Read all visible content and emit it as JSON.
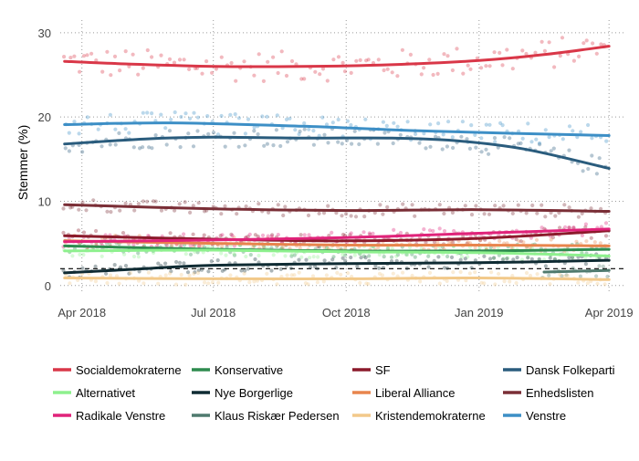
{
  "chart_data": {
    "type": "line",
    "title": "",
    "xlabel": "",
    "ylabel": "Stemmer (%)",
    "ylim": [
      -1,
      31.5
    ],
    "xlim": [
      "2018-03-17",
      "2019-04-11"
    ],
    "x_ticks": [
      {
        "date": "2018-04-01",
        "label": "Apr 2018"
      },
      {
        "date": "2018-07-01",
        "label": "Jul 2018"
      },
      {
        "date": "2018-10-01",
        "label": "Oct 2018"
      },
      {
        "date": "2019-01-01",
        "label": "Jan 2019"
      },
      {
        "date": "2019-04-01",
        "label": "Apr 2019"
      }
    ],
    "y_ticks": [
      0,
      10,
      20,
      30
    ],
    "grid": "dotted",
    "threshold_line": 2,
    "legend_position": "bottom",
    "series": [
      {
        "name": "Socialdemokraterne",
        "color": "#d93748",
        "x": [
          "2018-03-20",
          "2018-05-01",
          "2018-07-01",
          "2018-09-01",
          "2018-11-01",
          "2019-01-01",
          "2019-02-15",
          "2019-04-01"
        ],
        "values": [
          26.6,
          26.3,
          26.0,
          26.0,
          26.2,
          26.7,
          27.4,
          28.4
        ]
      },
      {
        "name": "Konservative",
        "color": "#2e8b4f",
        "x": [
          "2018-03-20",
          "2018-07-01",
          "2018-10-01",
          "2019-01-01",
          "2019-04-01"
        ],
        "values": [
          4.7,
          4.3,
          4.1,
          4.1,
          4.3
        ]
      },
      {
        "name": "SF",
        "color": "#8b1a2b",
        "x": [
          "2018-03-20",
          "2018-07-01",
          "2018-10-01",
          "2019-01-01",
          "2019-04-01"
        ],
        "values": [
          5.9,
          5.5,
          5.3,
          5.6,
          6.5
        ]
      },
      {
        "name": "Dansk Folkeparti",
        "color": "#2a5c7d",
        "x": [
          "2018-03-20",
          "2018-05-15",
          "2018-07-01",
          "2018-09-01",
          "2018-11-01",
          "2018-12-15",
          "2019-02-01",
          "2019-04-01"
        ],
        "values": [
          16.8,
          17.4,
          17.6,
          17.5,
          17.5,
          17.2,
          16.2,
          13.9
        ]
      },
      {
        "name": "Alternativet",
        "color": "#8ef08e",
        "x": [
          "2018-03-20",
          "2018-07-01",
          "2018-10-01",
          "2019-01-01",
          "2019-04-01"
        ],
        "values": [
          4.1,
          4.2,
          4.0,
          3.9,
          3.5
        ]
      },
      {
        "name": "Nye Borgerlige",
        "color": "#0f2b33",
        "x": [
          "2018-03-20",
          "2018-05-15",
          "2018-07-01",
          "2018-10-01",
          "2019-01-01",
          "2019-04-01"
        ],
        "values": [
          1.5,
          2.0,
          2.4,
          2.6,
          2.7,
          3.0
        ]
      },
      {
        "name": "Liberal Alliance",
        "color": "#e8854d",
        "x": [
          "2018-03-20",
          "2018-07-01",
          "2018-10-01",
          "2019-01-01",
          "2019-04-01"
        ],
        "values": [
          5.3,
          5.0,
          4.8,
          4.8,
          4.7
        ]
      },
      {
        "name": "Enhedslisten",
        "color": "#7a2e36",
        "x": [
          "2018-03-20",
          "2018-07-01",
          "2018-10-01",
          "2019-01-01",
          "2019-04-01"
        ],
        "values": [
          9.6,
          9.1,
          8.9,
          9.0,
          8.8
        ]
      },
      {
        "name": "Radikale Venstre",
        "color": "#e0237a",
        "x": [
          "2018-03-20",
          "2018-07-01",
          "2018-10-01",
          "2019-01-01",
          "2019-04-01"
        ],
        "values": [
          5.2,
          5.4,
          5.7,
          6.2,
          6.7
        ]
      },
      {
        "name": "Klaus Riskær Pedersen",
        "color": "#4f7a6e",
        "x": [
          "2019-02-15",
          "2019-04-01"
        ],
        "values": [
          1.6,
          1.8
        ]
      },
      {
        "name": "Kristendemokraterne",
        "color": "#f2c98a",
        "x": [
          "2018-03-20",
          "2018-07-01",
          "2018-10-01",
          "2019-01-01",
          "2019-04-01"
        ],
        "values": [
          0.9,
          0.8,
          0.8,
          0.9,
          0.7
        ]
      },
      {
        "name": "Venstre",
        "color": "#3d8fc6",
        "x": [
          "2018-03-20",
          "2018-06-01",
          "2018-09-01",
          "2018-12-01",
          "2019-04-01"
        ],
        "values": [
          19.1,
          19.3,
          18.9,
          18.3,
          17.8
        ]
      }
    ]
  }
}
